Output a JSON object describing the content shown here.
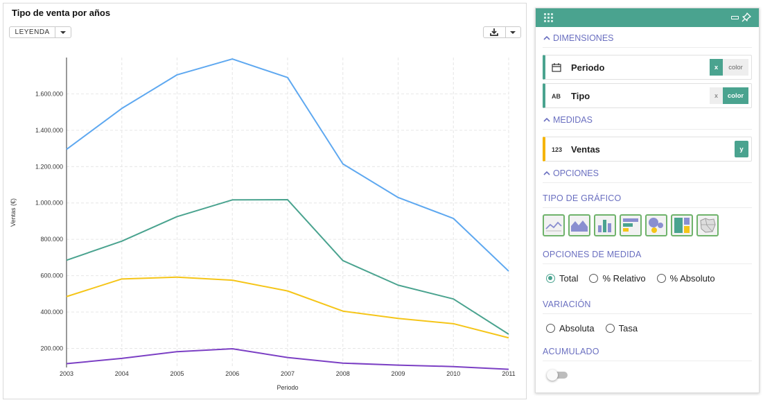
{
  "chart": {
    "title": "Tipo de venta por años",
    "legend_button": "LEYENDA",
    "download_icon": "download-icon"
  },
  "chart_data": {
    "type": "line",
    "xlabel": "Periodo",
    "ylabel": "Ventas (€)",
    "x": [
      2003,
      2004,
      2005,
      2006,
      2007,
      2008,
      2009,
      2010,
      2011
    ],
    "x_tick_labels": [
      "2003",
      "2004",
      "2005",
      "2006",
      "2007",
      "2008",
      "2009",
      "2010",
      "2011"
    ],
    "ylim": [
      95000,
      1800000
    ],
    "y_ticks": [
      200000,
      400000,
      600000,
      800000,
      1000000,
      1200000,
      1400000,
      1600000
    ],
    "y_tick_labels": [
      "200.000",
      "400.000",
      "600.000",
      "800.000",
      "1.000.000",
      "1.200.000",
      "1.400.000",
      "1.600.000"
    ],
    "grid": true,
    "series": [
      {
        "color": "#5ea8f0",
        "values": [
          1295000,
          1520000,
          1705000,
          1792000,
          1690000,
          1215000,
          1030000,
          915000,
          625000
        ]
      },
      {
        "color": "#4aa38f",
        "values": [
          685000,
          790000,
          925000,
          1017000,
          1018000,
          683000,
          548000,
          472000,
          278000
        ]
      },
      {
        "color": "#f5c518",
        "values": [
          485000,
          582000,
          592000,
          575000,
          516000,
          405000,
          365000,
          336000,
          258000
        ]
      },
      {
        "color": "#7b3fc4",
        "values": [
          116000,
          145000,
          182000,
          198000,
          150000,
          119000,
          108000,
          100000,
          85000
        ]
      }
    ]
  },
  "panel": {
    "sections": {
      "dimensions": "DIMENSIONES",
      "measures": "MEDIDAS",
      "options": "OPCIONES"
    },
    "dimensions": [
      {
        "label": "Periodo",
        "icon": "calendar-icon",
        "x_chip": "x",
        "color_chip": "color",
        "active": "x"
      },
      {
        "label": "Tipo",
        "icon": "text-type-icon",
        "x_chip": "x",
        "color_chip": "color",
        "active": "color"
      }
    ],
    "measure": {
      "label": "Ventas",
      "icon": "numeric-icon",
      "chip": "y"
    },
    "chart_type_label": "TIPO DE GRÁFICO",
    "chart_types": [
      "line-chart-icon",
      "area-chart-icon",
      "bar-chart-icon",
      "horizontal-bar-icon",
      "bubble-chart-icon",
      "treemap-icon",
      "map-chart-icon"
    ],
    "measure_options_label": "OPCIONES DE MEDIDA",
    "measure_options": [
      "Total",
      "% Relativo",
      "% Absoluto"
    ],
    "measure_selected": "Total",
    "variation_label": "VARIACIÓN",
    "variation_options": [
      "Absoluta",
      "Tasa"
    ],
    "cumulative_label": "ACUMULADO",
    "cumulative_on": false
  }
}
